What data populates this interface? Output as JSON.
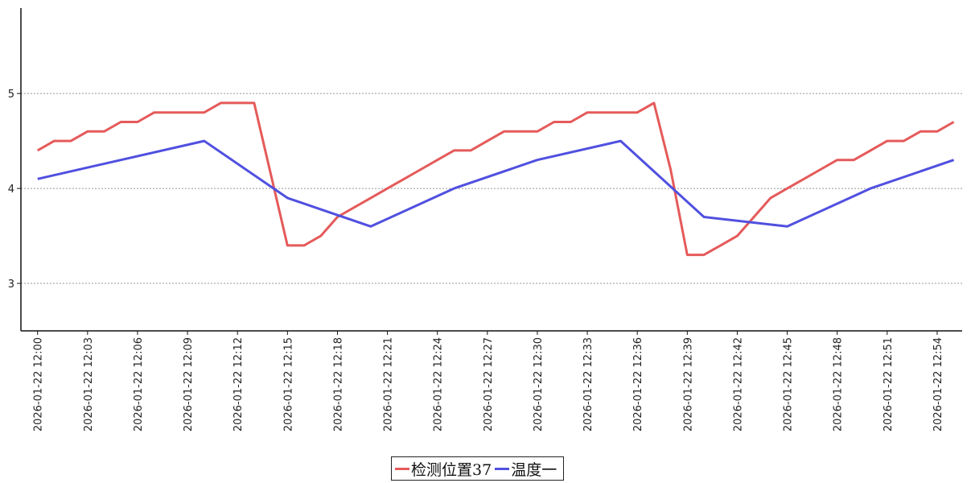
{
  "chart_data": {
    "type": "line",
    "x_tick_labels": [
      "2026-01-22 12:00",
      "2026-01-22 12:03",
      "2026-01-22 12:06",
      "2026-01-22 12:09",
      "2026-01-22 12:12",
      "2026-01-22 12:15",
      "2026-01-22 12:18",
      "2026-01-22 12:21",
      "2026-01-22 12:24",
      "2026-01-22 12:27",
      "2026-01-22 12:30",
      "2026-01-22 12:33",
      "2026-01-22 12:36",
      "2026-01-22 12:39",
      "2026-01-22 12:42",
      "2026-01-22 12:45",
      "2026-01-22 12:48",
      "2026-01-22 12:51",
      "2026-01-22 12:54"
    ],
    "y_ticks": [
      3,
      4,
      5
    ],
    "ylim": [
      2.5,
      5.9
    ],
    "xlim_minutes": [
      -1,
      55.5
    ],
    "grid": "horizontal-dashed",
    "legend_position": "bottom-center",
    "series": [
      {
        "name": "检测位置37",
        "color": "#e55a5a",
        "x_minutes": [
          0,
          1,
          2,
          3,
          4,
          5,
          6,
          7,
          8,
          9,
          10,
          11,
          12,
          13,
          14,
          15,
          16,
          17,
          18,
          19,
          20,
          21,
          22,
          23,
          24,
          25,
          26,
          27,
          28,
          29,
          30,
          31,
          32,
          33,
          34,
          35,
          36,
          37,
          38,
          39,
          40,
          41,
          42,
          43,
          44,
          45,
          46,
          47,
          48,
          49,
          50,
          51,
          52,
          53,
          54,
          55
        ],
        "values": [
          4.4,
          4.5,
          4.5,
          4.6,
          4.6,
          4.7,
          4.7,
          4.8,
          4.8,
          4.8,
          4.8,
          4.9,
          4.9,
          4.9,
          4.15,
          3.4,
          3.4,
          3.5,
          3.7,
          3.8,
          3.9,
          4.0,
          4.1,
          4.2,
          4.3,
          4.4,
          4.4,
          4.5,
          4.6,
          4.6,
          4.6,
          4.7,
          4.7,
          4.8,
          4.8,
          4.8,
          4.8,
          4.9,
          4.2,
          3.3,
          3.3,
          3.4,
          3.5,
          3.7,
          3.9,
          4.0,
          4.1,
          4.2,
          4.3,
          4.3,
          4.4,
          4.5,
          4.5,
          4.6,
          4.6,
          4.7
        ]
      },
      {
        "name": "温度一",
        "color": "#5050e0",
        "x_minutes": [
          0,
          10,
          15,
          20,
          25,
          30,
          35,
          40,
          45,
          50,
          55
        ],
        "values": [
          4.1,
          4.5,
          3.9,
          3.6,
          4.0,
          4.3,
          4.5,
          3.7,
          3.6,
          4.0,
          4.3
        ]
      }
    ]
  }
}
